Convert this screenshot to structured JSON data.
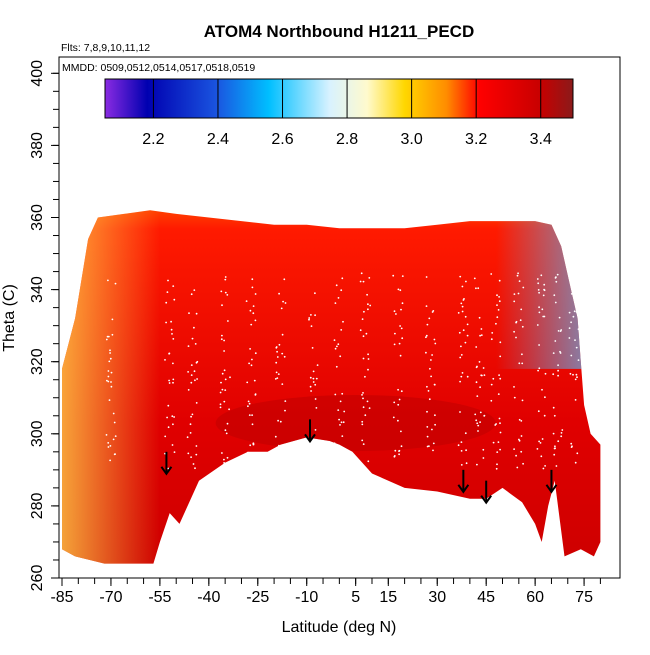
{
  "chart_data": {
    "type": "heatmap",
    "title": "ATOM4 Northbound H1211_PECD",
    "annotations": {
      "flights": "Flts: 7,8,9,10,11,12",
      "dates": "MMDD: 0509,0512,0514,0517,0518,0519"
    },
    "xlabel": "Latitude (deg N)",
    "ylabel": "Theta (C)",
    "xlim": [
      -88,
      84
    ],
    "ylim": [
      260,
      405
    ],
    "x_tick_labels": [
      "-85",
      "-70",
      "-55",
      "-40",
      "-25",
      "-10",
      "5",
      "15",
      "30",
      "45",
      "60",
      "75"
    ],
    "x_tick_values": [
      -85,
      -70,
      -55,
      -40,
      -25,
      -10,
      5,
      15,
      30,
      45,
      60,
      75
    ],
    "y_tick_labels": [
      "260",
      "280",
      "300",
      "320",
      "340",
      "360",
      "380",
      "400"
    ],
    "y_tick_values": [
      260,
      280,
      300,
      320,
      340,
      360,
      380,
      400
    ],
    "colorbar": {
      "min": 2.05,
      "max": 3.5,
      "tick_labels": [
        "2.2",
        "2.4",
        "2.6",
        "2.8",
        "3.0",
        "3.2",
        "3.4"
      ],
      "tick_values": [
        2.2,
        2.4,
        2.6,
        2.8,
        3.0,
        3.2,
        3.4
      ],
      "colors": [
        "#8a2be2",
        "#0000b0",
        "#1a55e0",
        "#00bfff",
        "#d8f2ff",
        "#fffacd",
        "#ffd700",
        "#ff8c00",
        "#ff0000",
        "#c80000",
        "#8b1a1a"
      ]
    },
    "field": {
      "description_source": "curtain plot of H1211 mixing ratio vs latitude and potential temperature",
      "lower_boundary": [
        [
          -85,
          268
        ],
        [
          -81,
          266
        ],
        [
          -72,
          264
        ],
        [
          -57,
          264
        ],
        [
          -55,
          270
        ],
        [
          -52,
          278
        ],
        [
          -49,
          275
        ],
        [
          -43,
          287
        ],
        [
          -35,
          292
        ],
        [
          -28,
          295
        ],
        [
          -22,
          295
        ],
        [
          -18,
          297
        ],
        [
          -10,
          299
        ],
        [
          -3,
          298
        ],
        [
          0,
          297
        ],
        [
          4,
          295
        ],
        [
          10,
          289
        ],
        [
          20,
          285
        ],
        [
          30,
          284
        ],
        [
          40,
          282
        ],
        [
          45,
          282
        ],
        [
          50,
          285
        ],
        [
          56,
          281
        ],
        [
          60,
          275
        ],
        [
          62,
          270
        ],
        [
          64,
          280
        ],
        [
          66,
          287
        ],
        [
          69,
          266
        ],
        [
          74,
          268
        ],
        [
          78,
          266
        ],
        [
          80,
          270
        ]
      ],
      "upper_boundary": [
        [
          -85,
          318
        ],
        [
          -81,
          332
        ],
        [
          -79,
          343
        ],
        [
          -77,
          354
        ],
        [
          -74,
          360
        ],
        [
          -66,
          361
        ],
        [
          -58,
          362
        ],
        [
          -50,
          361
        ],
        [
          -40,
          360
        ],
        [
          -30,
          359
        ],
        [
          -20,
          358
        ],
        [
          -10,
          358
        ],
        [
          0,
          357
        ],
        [
          10,
          357
        ],
        [
          20,
          357
        ],
        [
          30,
          358
        ],
        [
          40,
          359
        ],
        [
          50,
          359
        ],
        [
          60,
          359
        ],
        [
          65,
          358
        ],
        [
          68,
          352
        ],
        [
          71,
          340
        ],
        [
          73,
          332
        ],
        [
          74,
          320
        ],
        [
          75,
          308
        ],
        [
          77,
          300
        ],
        [
          80,
          297
        ]
      ]
    },
    "arrows_at_latitude": [
      -53,
      -9,
      38,
      45,
      65
    ]
  }
}
